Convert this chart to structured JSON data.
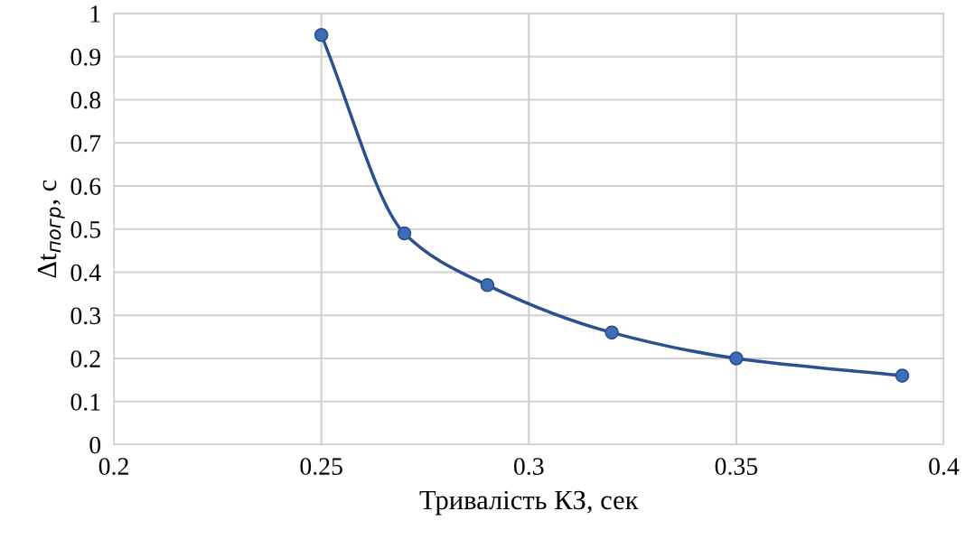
{
  "chart_data": {
    "type": "line",
    "xlabel": "Тривалість КЗ, сек",
    "ylabel": "Δt$_{погр}$, с",
    "x": [
      0.25,
      0.27,
      0.29,
      0.32,
      0.35,
      0.39
    ],
    "series": [
      {
        "color": "#2b4f8f",
        "values": [
          0.95,
          0.49,
          0.37,
          0.26,
          0.2,
          0.16
        ]
      }
    ],
    "xlim": [
      0.2,
      0.4
    ],
    "xticks": [
      0.2,
      0.25,
      0.3,
      0.35,
      0.4
    ],
    "ylim": [
      0,
      1
    ],
    "yticks": [
      0,
      0.1,
      0.2,
      0.3,
      0.4,
      0.5,
      0.6,
      0.7,
      0.8,
      0.9,
      1
    ],
    "grid": true,
    "marker": "circle",
    "line_style": "solid"
  }
}
